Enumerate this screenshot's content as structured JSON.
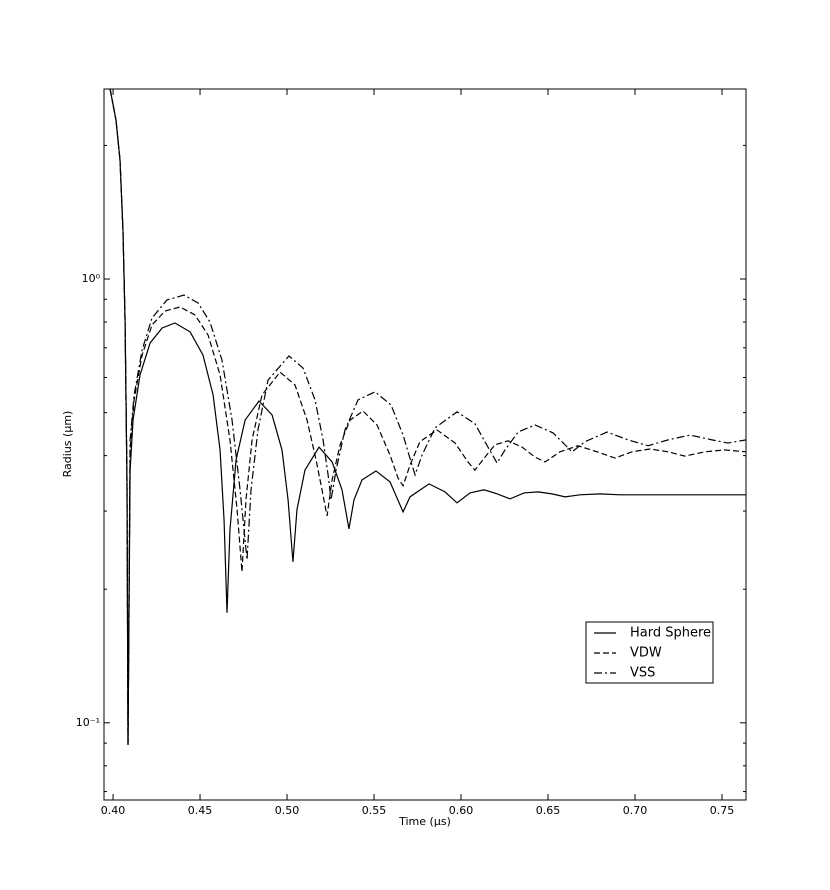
{
  "chart_data": {
    "type": "line",
    "xlabel": "Time (µs)",
    "ylabel": "Radius (µm)",
    "xlim": [
      0.3948,
      0.7638
    ],
    "ylim": [
      0.067,
      2.68
    ],
    "yscale": "log",
    "xticks": [
      {
        "value": 0.4,
        "label": "0.40"
      },
      0.45,
      {
        "value": 0.5,
        "label": "0.50"
      },
      0.55,
      {
        "value": 0.6,
        "label": "0.60"
      },
      0.65,
      {
        "value": 0.7,
        "label": "0.70"
      },
      0.75
    ],
    "yticks": [
      {
        "value": 0.1,
        "label": "10⁻¹"
      },
      {
        "value": 1,
        "label": "10⁰"
      }
    ],
    "yminorticks": [
      0.07,
      0.08,
      0.09,
      0.2,
      0.3,
      0.4,
      0.5,
      0.6,
      0.7,
      0.8,
      0.9,
      2
    ],
    "legend": "lower right",
    "series": [
      {
        "name": "Hard Sphere",
        "color": "#000000",
        "linestyle": "solid",
        "x": [
          0.3983,
          0.4017,
          0.404,
          0.4057,
          0.4069,
          0.408,
          0.4086,
          0.4098,
          0.4115,
          0.4155,
          0.4213,
          0.4282,
          0.4356,
          0.4443,
          0.4517,
          0.4575,
          0.4615,
          0.4638,
          0.4655,
          0.4672,
          0.4707,
          0.4759,
          0.4839,
          0.4914,
          0.4971,
          0.5006,
          0.5034,
          0.5057,
          0.5103,
          0.5184,
          0.5259,
          0.5316,
          0.5356,
          0.5385,
          0.5431,
          0.5511,
          0.5592,
          0.5667,
          0.5707,
          0.5816,
          0.5908,
          0.5977,
          0.6052,
          0.6132,
          0.6207,
          0.6282,
          0.6362,
          0.6443,
          0.6523,
          0.6598,
          0.6684,
          0.6799,
          0.6914,
          0.7086,
          0.7374,
          0.7638
        ],
        "values": [
          2.679,
          2.281,
          1.854,
          1.289,
          0.809,
          0.3526,
          0.0892,
          0.3713,
          0.4814,
          0.6077,
          0.7177,
          0.7757,
          0.796,
          0.76,
          0.674,
          0.548,
          0.412,
          0.2866,
          0.177,
          0.272,
          0.391,
          0.481,
          0.531,
          0.494,
          0.412,
          0.318,
          0.2305,
          0.302,
          0.371,
          0.418,
          0.387,
          0.335,
          0.2735,
          0.318,
          0.3526,
          0.3694,
          0.349,
          0.2987,
          0.323,
          0.3454,
          0.3314,
          0.313,
          0.3296,
          0.335,
          0.328,
          0.3196,
          0.3296,
          0.3314,
          0.328,
          0.323,
          0.3264,
          0.328,
          0.3264,
          0.3264,
          0.3264,
          0.3264
        ]
      },
      {
        "name": "VDW",
        "color": "#000000",
        "linestyle": "dashed",
        "x": [
          0.3983,
          0.4017,
          0.404,
          0.4057,
          0.4069,
          0.408,
          0.4086,
          0.4098,
          0.4121,
          0.4167,
          0.4224,
          0.4299,
          0.4385,
          0.4471,
          0.4546,
          0.4615,
          0.4672,
          0.4713,
          0.4741,
          0.4764,
          0.4799,
          0.4856,
          0.496,
          0.5046,
          0.5115,
          0.5167,
          0.5201,
          0.523,
          0.5259,
          0.5305,
          0.5362,
          0.5437,
          0.5517,
          0.5592,
          0.5638,
          0.5667,
          0.5707,
          0.5764,
          0.5862,
          0.5966,
          0.604,
          0.608,
          0.6138,
          0.6195,
          0.627,
          0.6351,
          0.6425,
          0.6483,
          0.6569,
          0.6672,
          0.6782,
          0.6885,
          0.6983,
          0.7086,
          0.719,
          0.7287,
          0.7402,
          0.7517,
          0.7638
        ],
        "values": [
          2.679,
          2.281,
          1.854,
          1.289,
          0.809,
          0.3526,
          0.0892,
          0.412,
          0.534,
          0.674,
          0.788,
          0.847,
          0.865,
          0.83,
          0.748,
          0.608,
          0.434,
          0.302,
          0.219,
          0.318,
          0.434,
          0.548,
          0.617,
          0.577,
          0.481,
          0.391,
          0.335,
          0.2925,
          0.3526,
          0.423,
          0.481,
          0.504,
          0.469,
          0.401,
          0.356,
          0.342,
          0.381,
          0.43,
          0.457,
          0.427,
          0.387,
          0.371,
          0.397,
          0.423,
          0.432,
          0.418,
          0.397,
          0.387,
          0.408,
          0.421,
          0.408,
          0.395,
          0.408,
          0.414,
          0.408,
          0.399,
          0.408,
          0.412,
          0.408
        ]
      },
      {
        "name": "VSS",
        "color": "#000000",
        "linestyle": "dashdot",
        "x": [
          0.3983,
          0.4017,
          0.404,
          0.4057,
          0.4069,
          0.408,
          0.4086,
          0.4098,
          0.4121,
          0.4167,
          0.4224,
          0.431,
          0.4408,
          0.4489,
          0.4557,
          0.4626,
          0.4684,
          0.473,
          0.477,
          0.4793,
          0.4833,
          0.4891,
          0.5011,
          0.5092,
          0.5161,
          0.5207,
          0.5236,
          0.5253,
          0.5282,
          0.5333,
          0.5408,
          0.5506,
          0.5598,
          0.5667,
          0.5713,
          0.5736,
          0.5776,
          0.5851,
          0.5977,
          0.608,
          0.6155,
          0.6207,
          0.6253,
          0.6328,
          0.6425,
          0.6529,
          0.6603,
          0.6638,
          0.6713,
          0.6839,
          0.696,
          0.7075,
          0.719,
          0.7316,
          0.7443,
          0.7534,
          0.7638
        ],
        "values": [
          2.679,
          2.281,
          1.854,
          1.289,
          0.809,
          0.3526,
          0.0892,
          0.434,
          0.548,
          0.692,
          0.817,
          0.897,
          0.92,
          0.883,
          0.8,
          0.657,
          0.481,
          0.335,
          0.233,
          0.335,
          0.457,
          0.592,
          0.671,
          0.63,
          0.534,
          0.434,
          0.362,
          0.318,
          0.371,
          0.457,
          0.534,
          0.557,
          0.52,
          0.445,
          0.387,
          0.362,
          0.401,
          0.462,
          0.502,
          0.472,
          0.418,
          0.385,
          0.412,
          0.452,
          0.469,
          0.45,
          0.421,
          0.408,
          0.43,
          0.452,
          0.434,
          0.421,
          0.434,
          0.445,
          0.434,
          0.427,
          0.434
        ]
      }
    ]
  }
}
